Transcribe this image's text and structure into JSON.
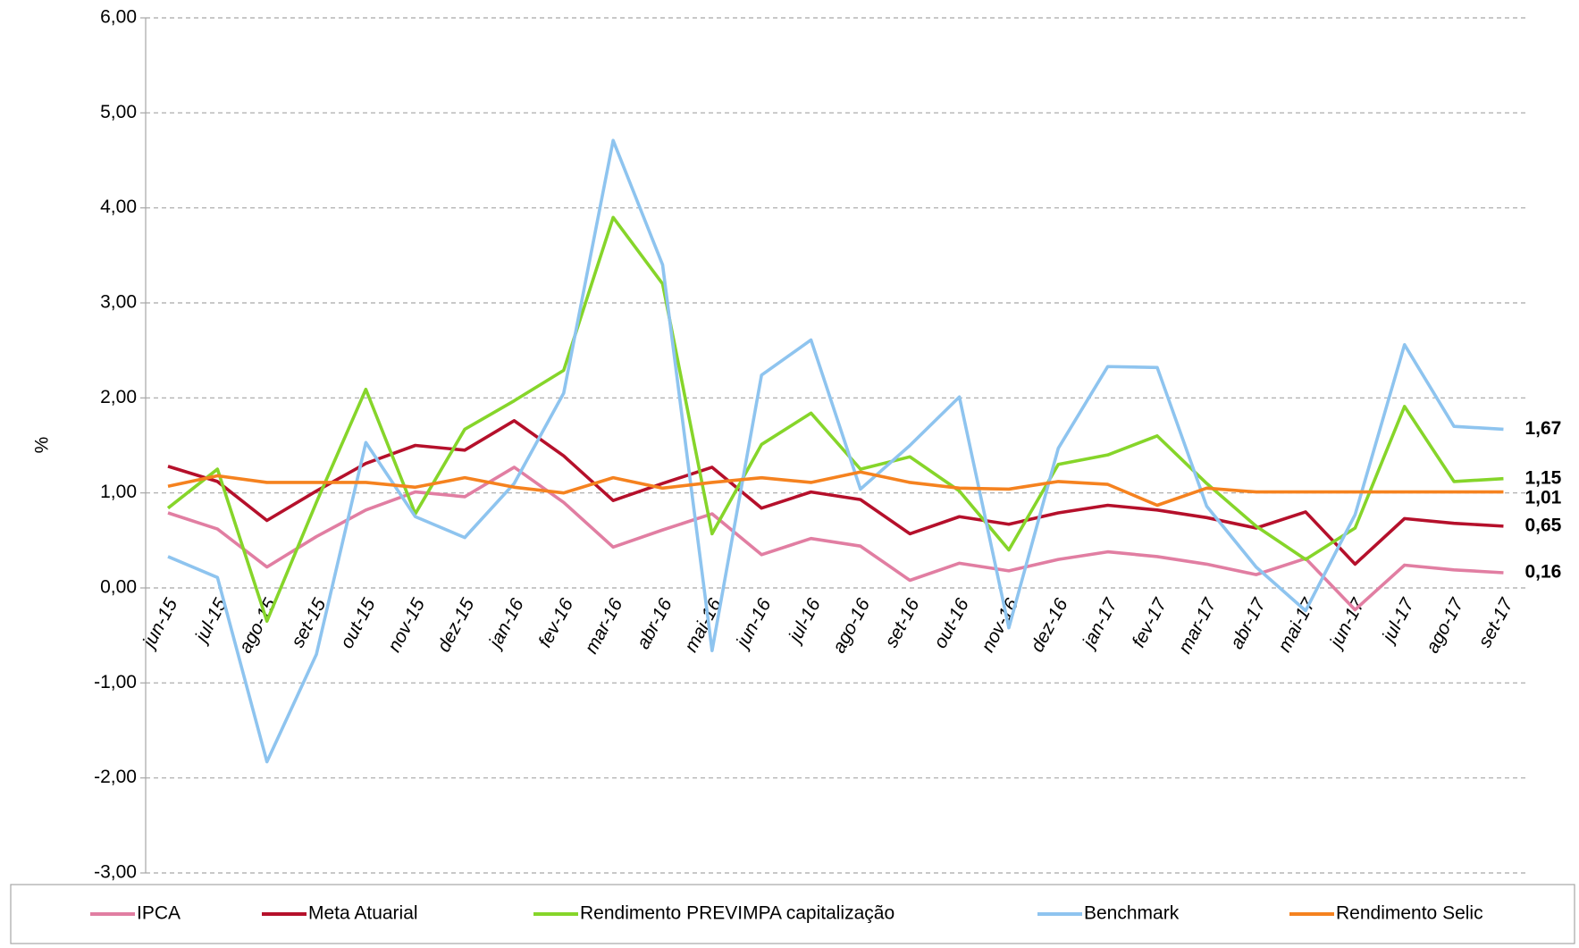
{
  "chart_data": {
    "type": "line",
    "y_label": "%",
    "categories": [
      "jun-15",
      "jul-15",
      "ago-15",
      "set-15",
      "out-15",
      "nov-15",
      "dez-15",
      "jan-16",
      "fev-16",
      "mar-16",
      "abr-16",
      "mai-16",
      "jun-16",
      "jul-16",
      "ago-16",
      "set-16",
      "out-16",
      "nov-16",
      "dez-16",
      "jan-17",
      "fev-17",
      "mar-17",
      "abr-17",
      "mai-17",
      "jun-17",
      "jul-17",
      "ago-17",
      "set-17"
    ],
    "series": [
      {
        "name": "IPCA",
        "color": "#e17ea2",
        "values": [
          0.79,
          0.62,
          0.22,
          0.54,
          0.82,
          1.01,
          0.96,
          1.27,
          0.9,
          0.43,
          0.61,
          0.78,
          0.35,
          0.52,
          0.44,
          0.08,
          0.26,
          0.18,
          0.3,
          0.38,
          0.33,
          0.25,
          0.14,
          0.31,
          -0.23,
          0.24,
          0.19,
          0.16
        ],
        "value_labels": [
          null,
          null,
          null,
          null,
          null,
          null,
          null,
          null,
          null,
          null,
          null,
          null,
          null,
          null,
          null,
          null,
          null,
          null,
          null,
          null,
          null,
          null,
          null,
          null,
          null,
          null,
          null,
          "0,16"
        ]
      },
      {
        "name": "Meta Atuarial",
        "color": "#b5102b",
        "values": [
          1.28,
          1.12,
          0.71,
          1.02,
          1.31,
          1.5,
          1.45,
          1.76,
          1.39,
          0.92,
          1.1,
          1.27,
          0.84,
          1.01,
          0.93,
          0.57,
          0.75,
          0.67,
          0.79,
          0.87,
          0.82,
          0.74,
          0.63,
          0.8,
          0.25,
          0.73,
          0.68,
          0.65
        ],
        "value_labels": [
          null,
          null,
          null,
          null,
          null,
          null,
          null,
          null,
          null,
          null,
          null,
          null,
          null,
          null,
          null,
          null,
          null,
          null,
          null,
          null,
          null,
          null,
          null,
          null,
          null,
          null,
          null,
          "0,65"
        ]
      },
      {
        "name": "Rendimento PREVIMPA capitalização",
        "color": "#86d52a",
        "values": [
          0.84,
          1.25,
          -0.35,
          0.9,
          2.09,
          0.78,
          1.67,
          1.97,
          2.29,
          3.9,
          3.2,
          0.57,
          1.51,
          1.84,
          1.25,
          1.38,
          1.02,
          0.4,
          1.3,
          1.4,
          1.6,
          1.1,
          0.65,
          0.3,
          0.63,
          1.91,
          1.12,
          1.15
        ],
        "value_labels": [
          null,
          null,
          null,
          null,
          null,
          null,
          null,
          null,
          null,
          null,
          null,
          null,
          null,
          null,
          null,
          null,
          null,
          null,
          null,
          null,
          null,
          null,
          null,
          null,
          null,
          null,
          null,
          "1,15"
        ]
      },
      {
        "name": "Benchmark",
        "color": "#8ec4ef",
        "values": [
          0.33,
          0.11,
          -1.83,
          -0.7,
          1.53,
          0.75,
          0.53,
          1.1,
          2.05,
          4.71,
          3.4,
          -0.66,
          2.24,
          2.61,
          1.04,
          1.5,
          2.01,
          -0.42,
          1.47,
          2.33,
          2.32,
          0.86,
          0.22,
          -0.24,
          0.77,
          2.56,
          1.7,
          1.67
        ],
        "value_labels": [
          null,
          null,
          null,
          null,
          null,
          null,
          null,
          null,
          null,
          null,
          null,
          null,
          null,
          null,
          null,
          null,
          null,
          null,
          null,
          null,
          null,
          null,
          null,
          null,
          null,
          null,
          null,
          "1,67"
        ]
      },
      {
        "name": "Rendimento Selic",
        "color": "#f5821f",
        "values": [
          1.07,
          1.18,
          1.11,
          1.11,
          1.11,
          1.06,
          1.16,
          1.06,
          1.0,
          1.16,
          1.05,
          1.11,
          1.16,
          1.11,
          1.22,
          1.11,
          1.05,
          1.04,
          1.12,
          1.09,
          0.87,
          1.05,
          1.01,
          1.01,
          1.01,
          1.01,
          1.01,
          1.01
        ],
        "value_labels": [
          null,
          null,
          null,
          null,
          null,
          null,
          null,
          null,
          null,
          null,
          null,
          null,
          null,
          null,
          null,
          null,
          null,
          null,
          null,
          null,
          null,
          null,
          null,
          null,
          null,
          null,
          null,
          "1,01"
        ]
      }
    ],
    "ylim": [
      -3,
      6
    ],
    "yticks": [
      {
        "value": 6,
        "label": "6,00"
      },
      {
        "value": 5,
        "label": "5,00"
      },
      {
        "value": 4,
        "label": "4,00"
      },
      {
        "value": 3,
        "label": "3,00"
      },
      {
        "value": 2,
        "label": "2,00"
      },
      {
        "value": 1,
        "label": "1,00"
      },
      {
        "value": 0,
        "label": "0,00"
      },
      {
        "value": -1,
        "label": "-1,00"
      },
      {
        "value": -2,
        "label": "-2,00"
      },
      {
        "value": -3,
        "label": "-3,00"
      }
    ],
    "grid": true,
    "legend": "bottom"
  }
}
